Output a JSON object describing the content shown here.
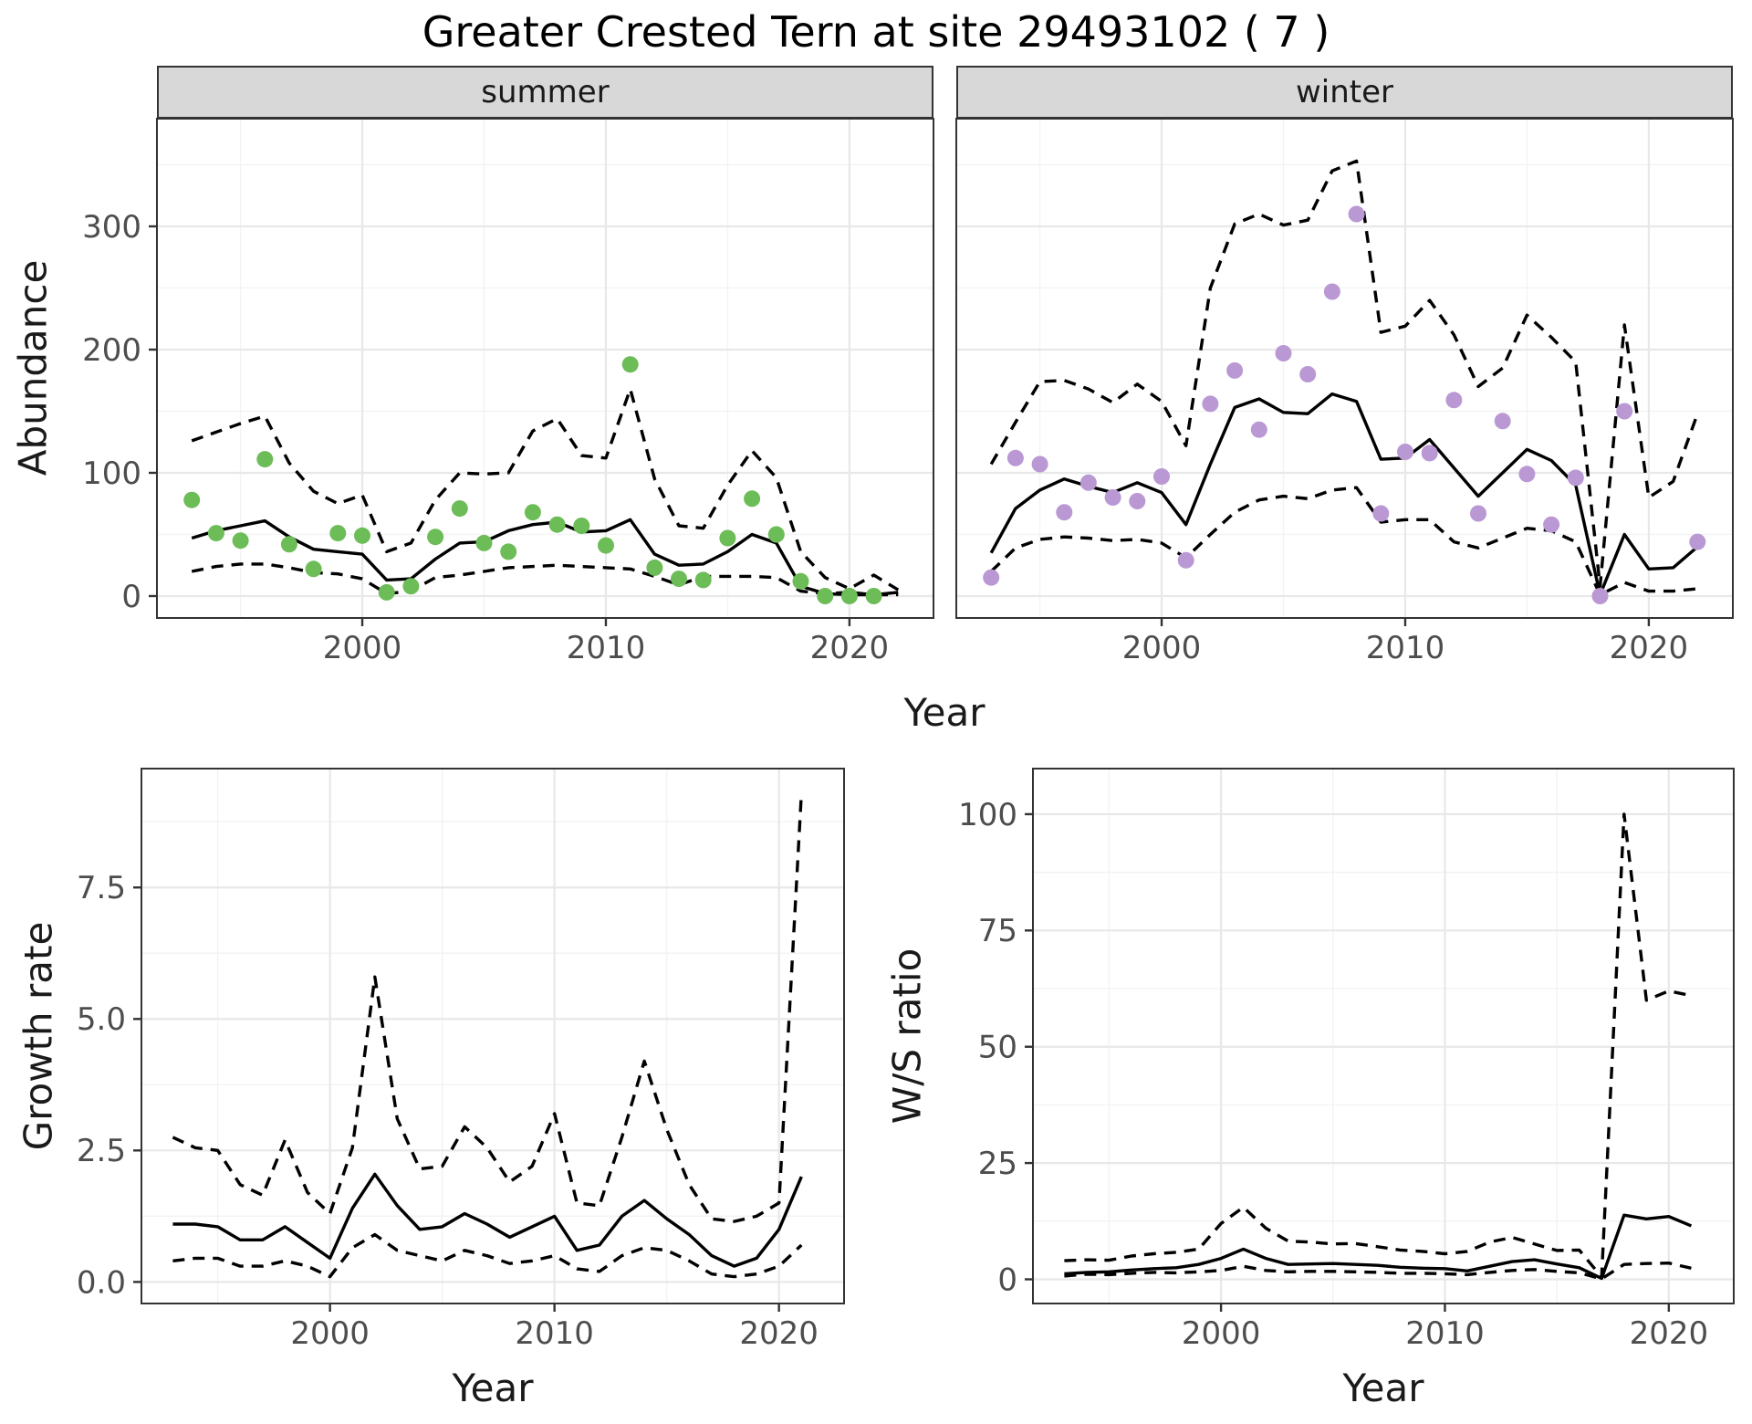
{
  "title": "Greater Crested Tern at site 29493102 ( 7 )",
  "top": {
    "ylabel": "Abundance",
    "xlabel": "Year"
  },
  "bottom_left": {
    "ylabel": "Growth rate",
    "xlabel": "Year"
  },
  "bottom_right": {
    "ylabel": "W/S ratio",
    "xlabel": "Year"
  },
  "colors": {
    "summer_points": "#6cbc57",
    "winter_points": "#b998d4",
    "line": "#000000",
    "strip_bg": "#d8d8d8",
    "grid_major": "#e8e8e8",
    "grid_minor": "#f3f3f3",
    "axis_text": "#4d4d4d",
    "panel_border": "#333333"
  },
  "chart_data": [
    {
      "type": "line",
      "facet": "summer",
      "xlabel": "Year",
      "ylabel": "Abundance",
      "xlim": [
        1991.57,
        2023.45
      ],
      "ylim": [
        -17.8,
        387.4
      ],
      "x_ticks": [
        {
          "v": 2000,
          "label": "2000"
        },
        {
          "v": 2010,
          "label": "2010"
        },
        {
          "v": 2020,
          "label": "2020"
        }
      ],
      "y_ticks": [
        {
          "v": 0,
          "label": "0"
        },
        {
          "v": 100,
          "label": "100"
        },
        {
          "v": 200,
          "label": "200"
        },
        {
          "v": 300,
          "label": "300"
        }
      ],
      "x_minor": [
        1995,
        2005,
        2015
      ],
      "y_minor": [
        50,
        150,
        250,
        350
      ],
      "x": [
        1993,
        1994,
        1995,
        1996,
        1997,
        1998,
        1999,
        2000,
        2001,
        2002,
        2003,
        2004,
        2005,
        2006,
        2007,
        2008,
        2009,
        2010,
        2011,
        2012,
        2013,
        2014,
        2015,
        2016,
        2017,
        2018,
        2019,
        2020,
        2021,
        2022
      ],
      "series": [
        {
          "name": "upper-ci",
          "style": "dashed",
          "color": "#000000",
          "values": [
            126,
            133,
            140,
            146,
            108,
            85,
            75,
            82,
            36,
            43,
            78,
            100,
            99,
            100,
            134,
            144,
            114,
            112,
            168,
            95,
            57,
            55,
            90,
            118,
            96,
            36,
            15,
            6,
            17,
            5
          ]
        },
        {
          "name": "lower-ci",
          "style": "dashed",
          "color": "#000000",
          "values": [
            20,
            24,
            26,
            26,
            23,
            19,
            18,
            14,
            2,
            4,
            15,
            17,
            20,
            23,
            24,
            25,
            24,
            23,
            22,
            16,
            9,
            16,
            16,
            16,
            15,
            4,
            2,
            3,
            1,
            1
          ]
        },
        {
          "name": "fitted",
          "style": "solid",
          "color": "#000000",
          "values": [
            47,
            53,
            57,
            61,
            48,
            38,
            36,
            34,
            13,
            14,
            30,
            43,
            44,
            53,
            58,
            60,
            52,
            53,
            62,
            34,
            25,
            26,
            36,
            50,
            43,
            8,
            2,
            1,
            1,
            3
          ]
        },
        {
          "name": "observed",
          "style": "points",
          "color": "#6cbc57",
          "values": [
            78,
            51,
            45,
            111,
            42,
            22,
            51,
            49,
            3,
            8,
            48,
            71,
            43,
            36,
            68,
            58,
            57,
            41,
            188,
            23,
            14,
            13,
            47,
            79,
            50,
            12,
            0,
            0,
            0,
            null
          ]
        }
      ]
    },
    {
      "type": "line",
      "facet": "winter",
      "xlabel": "Year",
      "ylabel": "Abundance",
      "xlim": [
        1991.57,
        2023.45
      ],
      "ylim": [
        -17.8,
        387.4
      ],
      "x_ticks": [
        {
          "v": 2000,
          "label": "2000"
        },
        {
          "v": 2010,
          "label": "2010"
        },
        {
          "v": 2020,
          "label": "2020"
        }
      ],
      "y_ticks": [
        {
          "v": 0,
          "label": "0"
        },
        {
          "v": 100,
          "label": "100"
        },
        {
          "v": 200,
          "label": "200"
        },
        {
          "v": 300,
          "label": "300"
        }
      ],
      "x_minor": [
        1995,
        2005,
        2015
      ],
      "y_minor": [
        50,
        150,
        250,
        350
      ],
      "x": [
        1993,
        1994,
        1995,
        1996,
        1997,
        1998,
        1999,
        2000,
        2001,
        2002,
        2003,
        2004,
        2005,
        2006,
        2007,
        2008,
        2009,
        2010,
        2011,
        2012,
        2013,
        2014,
        2015,
        2016,
        2017,
        2018,
        2019,
        2020,
        2021,
        2022
      ],
      "series": [
        {
          "name": "upper-ci",
          "style": "dashed",
          "color": "#000000",
          "values": [
            107,
            141,
            174,
            175,
            168,
            157,
            172,
            158,
            122,
            250,
            302,
            310,
            301,
            305,
            345,
            353,
            214,
            219,
            240,
            212,
            170,
            185,
            228,
            210,
            190,
            8,
            220,
            80,
            93,
            148
          ]
        },
        {
          "name": "lower-ci",
          "style": "dashed",
          "color": "#000000",
          "values": [
            20,
            39,
            46,
            48,
            47,
            45,
            46,
            43,
            31,
            50,
            68,
            78,
            81,
            79,
            86,
            88,
            60,
            62,
            62,
            44,
            39,
            47,
            55,
            53,
            44,
            1,
            11,
            4,
            4,
            6
          ]
        },
        {
          "name": "fitted",
          "style": "solid",
          "color": "#000000",
          "values": [
            35,
            71,
            86,
            95,
            89,
            84,
            92,
            84,
            58,
            107,
            153,
            160,
            149,
            148,
            164,
            158,
            111,
            112,
            127,
            104,
            81,
            100,
            119,
            110,
            90,
            1,
            50,
            22,
            23,
            40
          ]
        },
        {
          "name": "observed",
          "style": "points",
          "color": "#b998d4",
          "values": [
            15,
            112,
            107,
            68,
            92,
            80,
            77,
            97,
            29,
            156,
            183,
            135,
            197,
            180,
            247,
            310,
            67,
            117,
            116,
            159,
            67,
            142,
            99,
            58,
            96,
            0,
            150,
            null,
            null,
            44
          ]
        }
      ]
    },
    {
      "type": "line",
      "facet": null,
      "xlabel": "Year",
      "ylabel": "Growth rate",
      "xlim": [
        1991.6,
        2022.9
      ],
      "ylim": [
        -0.41,
        9.76
      ],
      "x_ticks": [
        {
          "v": 2000,
          "label": "2000"
        },
        {
          "v": 2010,
          "label": "2010"
        },
        {
          "v": 2020,
          "label": "2020"
        }
      ],
      "y_ticks": [
        {
          "v": 0,
          "label": "0.0"
        },
        {
          "v": 2.5,
          "label": "2.5"
        },
        {
          "v": 5,
          "label": "5.0"
        },
        {
          "v": 7.5,
          "label": "7.5"
        }
      ],
      "x_minor": [
        1995,
        2005,
        2015
      ],
      "y_minor": [
        1.25,
        3.75,
        6.25,
        8.75
      ],
      "x": [
        1993,
        1994,
        1995,
        1996,
        1997,
        1998,
        1999,
        2000,
        2001,
        2002,
        2003,
        2004,
        2005,
        2006,
        2007,
        2008,
        2009,
        2010,
        2011,
        2012,
        2013,
        2014,
        2015,
        2016,
        2017,
        2018,
        2019,
        2020,
        2021
      ],
      "series": [
        {
          "name": "upper-ci",
          "style": "dashed",
          "color": "#000000",
          "values": [
            2.75,
            2.55,
            2.5,
            1.85,
            1.65,
            2.7,
            1.7,
            1.3,
            2.55,
            5.8,
            3.1,
            2.15,
            2.2,
            2.95,
            2.55,
            1.9,
            2.2,
            3.2,
            1.5,
            1.45,
            2.75,
            4.2,
            2.9,
            1.85,
            1.2,
            1.15,
            1.25,
            1.5,
            9.3
          ]
        },
        {
          "name": "lower-ci",
          "style": "dashed",
          "color": "#000000",
          "values": [
            0.4,
            0.45,
            0.45,
            0.3,
            0.3,
            0.4,
            0.3,
            0.1,
            0.65,
            0.9,
            0.6,
            0.5,
            0.4,
            0.6,
            0.5,
            0.35,
            0.4,
            0.5,
            0.25,
            0.2,
            0.5,
            0.65,
            0.6,
            0.4,
            0.15,
            0.1,
            0.15,
            0.3,
            0.7
          ]
        },
        {
          "name": "fitted",
          "style": "solid",
          "color": "#000000",
          "values": [
            1.1,
            1.1,
            1.05,
            0.8,
            0.8,
            1.05,
            0.75,
            0.45,
            1.4,
            2.05,
            1.45,
            1.0,
            1.05,
            1.3,
            1.1,
            0.85,
            1.05,
            1.25,
            0.6,
            0.7,
            1.25,
            1.55,
            1.2,
            0.9,
            0.5,
            0.3,
            0.45,
            1.0,
            2.0
          ]
        }
      ]
    },
    {
      "type": "line",
      "facet": null,
      "xlabel": "Year",
      "ylabel": "W/S ratio",
      "xlim": [
        1991.6,
        2022.9
      ],
      "ylim": [
        -5.2,
        109.8
      ],
      "x_ticks": [
        {
          "v": 2000,
          "label": "2000"
        },
        {
          "v": 2010,
          "label": "2010"
        },
        {
          "v": 2020,
          "label": "2020"
        }
      ],
      "y_ticks": [
        {
          "v": 0,
          "label": "0"
        },
        {
          "v": 25,
          "label": "25"
        },
        {
          "v": 50,
          "label": "50"
        },
        {
          "v": 75,
          "label": "75"
        },
        {
          "v": 100,
          "label": "100"
        }
      ],
      "x_minor": [
        1995,
        2005,
        2015
      ],
      "y_minor": [
        12.5,
        37.5,
        62.5,
        87.5
      ],
      "x": [
        1993,
        1994,
        1995,
        1996,
        1997,
        1998,
        1999,
        2000,
        2001,
        2002,
        2003,
        2004,
        2005,
        2006,
        2007,
        2008,
        2009,
        2010,
        2011,
        2012,
        2013,
        2014,
        2015,
        2016,
        2017,
        2018,
        2019,
        2020,
        2021
      ],
      "series": [
        {
          "name": "upper-ci",
          "style": "dashed",
          "color": "#000000",
          "values": [
            4.0,
            4.2,
            4.1,
            5.0,
            5.5,
            5.8,
            6.5,
            12.0,
            15.5,
            11.0,
            8.2,
            8.0,
            7.6,
            7.7,
            7.0,
            6.3,
            6.0,
            5.5,
            6.0,
            8.0,
            9.0,
            7.6,
            6.2,
            6.3,
            0.5,
            100,
            60,
            62,
            61
          ]
        },
        {
          "name": "lower-ci",
          "style": "dashed",
          "color": "#000000",
          "values": [
            0.7,
            1.1,
            1.0,
            1.3,
            1.5,
            1.4,
            1.6,
            1.9,
            2.8,
            1.9,
            1.6,
            1.7,
            1.7,
            1.6,
            1.5,
            1.3,
            1.3,
            1.2,
            1.0,
            1.5,
            1.9,
            2.1,
            1.7,
            1.4,
            0.1,
            3.2,
            3.4,
            3.5,
            2.4
          ]
        },
        {
          "name": "fitted",
          "style": "solid",
          "color": "#000000",
          "values": [
            1.2,
            1.5,
            1.6,
            2.0,
            2.3,
            2.5,
            3.2,
            4.5,
            6.5,
            4.5,
            3.2,
            3.3,
            3.4,
            3.2,
            3.0,
            2.6,
            2.4,
            2.3,
            1.8,
            2.8,
            3.8,
            4.2,
            3.3,
            2.5,
            0.2,
            13.8,
            13.0,
            13.5,
            11.5
          ]
        }
      ]
    }
  ]
}
